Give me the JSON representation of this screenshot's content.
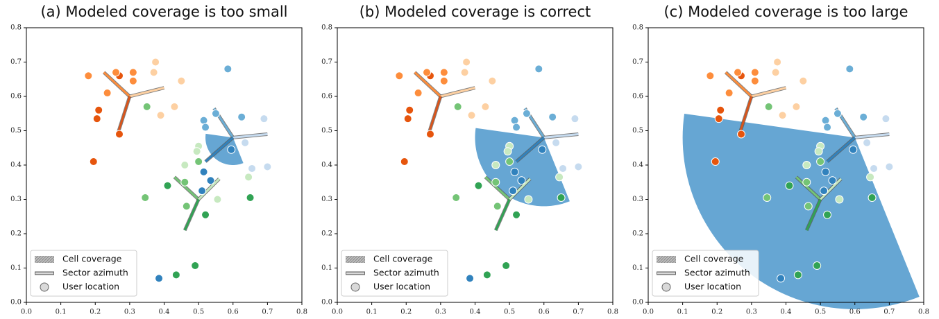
{
  "chart_data": [
    {
      "type": "scatter",
      "title": "(a) Modeled coverage is too small",
      "xlim": [
        0,
        0.8
      ],
      "ylim": [
        0,
        0.8
      ],
      "xticks": [
        {
          "value": 0,
          "label": "0.0"
        },
        0.1,
        0.2,
        0.3,
        0.4,
        0.5,
        0.6,
        0.7,
        0.8
      ],
      "yticks": [
        {
          "value": 0,
          "label": "0.0"
        },
        0.1,
        0.2,
        0.3,
        0.4,
        0.5,
        0.6,
        0.7,
        0.8
      ],
      "coverage": {
        "x": 0.6,
        "y": 0.48,
        "radius": 0.08,
        "angles": [
          172,
          292
        ],
        "color": "#66a6d3"
      },
      "sites": [
        {
          "x": 0.3,
          "y": 0.6,
          "arms": [
            {
              "x": 0.225,
              "y": 0.67,
              "color": "#fd8d3c"
            },
            {
              "x": 0.4,
              "y": 0.625,
              "color": "#fdd0a2"
            },
            {
              "x": 0.265,
              "y": 0.49,
              "color": "#d9541a"
            }
          ]
        },
        {
          "x": 0.6,
          "y": 0.48,
          "arms": [
            {
              "x": 0.545,
              "y": 0.565,
              "color": "#6baed6"
            },
            {
              "x": 0.7,
              "y": 0.49,
              "color": "#c6dbef"
            },
            {
              "x": 0.52,
              "y": 0.41,
              "color": "#3182bd"
            }
          ]
        },
        {
          "x": 0.5,
          "y": 0.3,
          "arms": [
            {
              "x": 0.43,
              "y": 0.365,
              "color": "#74c476"
            },
            {
              "x": 0.56,
              "y": 0.36,
              "color": "#c7e9c0"
            },
            {
              "x": 0.46,
              "y": 0.21,
              "color": "#31a354"
            }
          ]
        }
      ],
      "series": [
        {
          "color": "#e6550d",
          "x": [
            0.27,
            0.21,
            0.205,
            0.27,
            0.195
          ],
          "y": [
            0.66,
            0.56,
            0.535,
            0.49,
            0.41
          ]
        },
        {
          "color": "#fd8d3c",
          "x": [
            0.18,
            0.26,
            0.31,
            0.31,
            0.235
          ],
          "y": [
            0.66,
            0.67,
            0.67,
            0.645,
            0.61
          ]
        },
        {
          "color": "#fdd0a2",
          "x": [
            0.375,
            0.37,
            0.39,
            0.45,
            0.43
          ],
          "y": [
            0.7,
            0.67,
            0.545,
            0.645,
            0.57
          ]
        },
        {
          "color": "#3182bd",
          "x": [
            0.595,
            0.515,
            0.535,
            0.51,
            0.385
          ],
          "y": [
            0.445,
            0.38,
            0.355,
            0.325,
            0.07
          ]
        },
        {
          "color": "#6baed6",
          "x": [
            0.585,
            0.515,
            0.52,
            0.55,
            0.625
          ],
          "y": [
            0.68,
            0.53,
            0.51,
            0.55,
            0.54
          ]
        },
        {
          "color": "#c6dbef",
          "x": [
            0.69,
            0.7,
            0.655,
            0.635
          ],
          "y": [
            0.535,
            0.395,
            0.39,
            0.465
          ]
        },
        {
          "color": "#31a354",
          "x": [
            0.41,
            0.49,
            0.435,
            0.52,
            0.65
          ],
          "y": [
            0.34,
            0.107,
            0.08,
            0.255,
            0.305
          ]
        },
        {
          "color": "#74c476",
          "x": [
            0.35,
            0.5,
            0.345,
            0.465,
            0.46
          ],
          "y": [
            0.57,
            0.41,
            0.305,
            0.28,
            0.35
          ]
        },
        {
          "color": "#c7e9c0",
          "x": [
            0.46,
            0.5,
            0.495,
            0.555,
            0.645
          ],
          "y": [
            0.4,
            0.455,
            0.44,
            0.3,
            0.365
          ]
        }
      ],
      "legend": [
        "Cell coverage",
        "Sector azimuth",
        "User location"
      ]
    },
    {
      "type": "scatter",
      "title": "(b) Modeled coverage is correct",
      "xlim": [
        0,
        0.8
      ],
      "ylim": [
        0,
        0.8
      ],
      "xticks": [
        {
          "value": 0,
          "label": "0.0"
        },
        0.1,
        0.2,
        0.3,
        0.4,
        0.5,
        0.6,
        0.7,
        0.8
      ],
      "yticks": [
        {
          "value": 0,
          "label": "0.0"
        },
        0.1,
        0.2,
        0.3,
        0.4,
        0.5,
        0.6,
        0.7,
        0.8
      ],
      "coverage": {
        "x": 0.6,
        "y": 0.48,
        "radius": 0.2,
        "angles": [
          172,
          292
        ],
        "color": "#66a6d3"
      },
      "sites": [
        {
          "x": 0.3,
          "y": 0.6,
          "arms": [
            {
              "x": 0.225,
              "y": 0.67,
              "color": "#fd8d3c"
            },
            {
              "x": 0.4,
              "y": 0.625,
              "color": "#fdd0a2"
            },
            {
              "x": 0.265,
              "y": 0.49,
              "color": "#d9541a"
            }
          ]
        },
        {
          "x": 0.6,
          "y": 0.48,
          "arms": [
            {
              "x": 0.545,
              "y": 0.565,
              "color": "#6baed6"
            },
            {
              "x": 0.7,
              "y": 0.49,
              "color": "#c6dbef"
            },
            {
              "x": 0.52,
              "y": 0.41,
              "color": "#3182bd"
            }
          ]
        },
        {
          "x": 0.5,
          "y": 0.3,
          "arms": [
            {
              "x": 0.43,
              "y": 0.365,
              "color": "#74c476"
            },
            {
              "x": 0.56,
              "y": 0.36,
              "color": "#c7e9c0"
            },
            {
              "x": 0.46,
              "y": 0.21,
              "color": "#31a354"
            }
          ]
        }
      ],
      "series": [
        {
          "color": "#e6550d",
          "x": [
            0.27,
            0.21,
            0.205,
            0.27,
            0.195
          ],
          "y": [
            0.66,
            0.56,
            0.535,
            0.49,
            0.41
          ]
        },
        {
          "color": "#fd8d3c",
          "x": [
            0.18,
            0.26,
            0.31,
            0.31,
            0.235
          ],
          "y": [
            0.66,
            0.67,
            0.67,
            0.645,
            0.61
          ]
        },
        {
          "color": "#fdd0a2",
          "x": [
            0.375,
            0.37,
            0.39,
            0.45,
            0.43
          ],
          "y": [
            0.7,
            0.67,
            0.545,
            0.645,
            0.57
          ]
        },
        {
          "color": "#3182bd",
          "x": [
            0.595,
            0.515,
            0.535,
            0.51,
            0.385
          ],
          "y": [
            0.445,
            0.38,
            0.355,
            0.325,
            0.07
          ]
        },
        {
          "color": "#6baed6",
          "x": [
            0.585,
            0.515,
            0.52,
            0.55,
            0.625
          ],
          "y": [
            0.68,
            0.53,
            0.51,
            0.55,
            0.54
          ]
        },
        {
          "color": "#c6dbef",
          "x": [
            0.69,
            0.7,
            0.655,
            0.635
          ],
          "y": [
            0.535,
            0.395,
            0.39,
            0.465
          ]
        },
        {
          "color": "#31a354",
          "x": [
            0.41,
            0.49,
            0.435,
            0.52,
            0.65
          ],
          "y": [
            0.34,
            0.107,
            0.08,
            0.255,
            0.305
          ]
        },
        {
          "color": "#74c476",
          "x": [
            0.35,
            0.5,
            0.345,
            0.465,
            0.46
          ],
          "y": [
            0.57,
            0.41,
            0.305,
            0.28,
            0.35
          ]
        },
        {
          "color": "#c7e9c0",
          "x": [
            0.46,
            0.5,
            0.495,
            0.555,
            0.645
          ],
          "y": [
            0.4,
            0.455,
            0.44,
            0.3,
            0.365
          ]
        }
      ],
      "legend": [
        "Cell coverage",
        "Sector azimuth",
        "User location"
      ]
    },
    {
      "type": "scatter",
      "title": "(c) Modeled coverage is too large",
      "xlim": [
        0,
        0.8
      ],
      "ylim": [
        0,
        0.8
      ],
      "xticks": [
        {
          "value": 0,
          "label": "0.0"
        },
        0.1,
        0.2,
        0.3,
        0.4,
        0.5,
        0.6,
        0.7,
        0.8
      ],
      "yticks": [
        {
          "value": 0,
          "label": "0.0"
        },
        0.1,
        0.2,
        0.3,
        0.4,
        0.5,
        0.6,
        0.7,
        0.8
      ],
      "coverage": {
        "x": 0.6,
        "y": 0.48,
        "radius": 0.5,
        "angles": [
          172,
          292
        ],
        "color": "#66a6d3"
      },
      "sites": [
        {
          "x": 0.3,
          "y": 0.6,
          "arms": [
            {
              "x": 0.225,
              "y": 0.67,
              "color": "#fd8d3c"
            },
            {
              "x": 0.4,
              "y": 0.625,
              "color": "#fdd0a2"
            },
            {
              "x": 0.265,
              "y": 0.49,
              "color": "#d9541a"
            }
          ]
        },
        {
          "x": 0.6,
          "y": 0.48,
          "arms": [
            {
              "x": 0.545,
              "y": 0.565,
              "color": "#6baed6"
            },
            {
              "x": 0.7,
              "y": 0.49,
              "color": "#c6dbef"
            },
            {
              "x": 0.52,
              "y": 0.41,
              "color": "#3182bd"
            }
          ]
        },
        {
          "x": 0.5,
          "y": 0.3,
          "arms": [
            {
              "x": 0.43,
              "y": 0.365,
              "color": "#74c476"
            },
            {
              "x": 0.56,
              "y": 0.36,
              "color": "#c7e9c0"
            },
            {
              "x": 0.46,
              "y": 0.21,
              "color": "#31a354"
            }
          ]
        }
      ],
      "series": [
        {
          "color": "#e6550d",
          "x": [
            0.27,
            0.21,
            0.205,
            0.27,
            0.195
          ],
          "y": [
            0.66,
            0.56,
            0.535,
            0.49,
            0.41
          ]
        },
        {
          "color": "#fd8d3c",
          "x": [
            0.18,
            0.26,
            0.31,
            0.31,
            0.235
          ],
          "y": [
            0.66,
            0.67,
            0.67,
            0.645,
            0.61
          ]
        },
        {
          "color": "#fdd0a2",
          "x": [
            0.375,
            0.37,
            0.39,
            0.45,
            0.43
          ],
          "y": [
            0.7,
            0.67,
            0.545,
            0.645,
            0.57
          ]
        },
        {
          "color": "#3182bd",
          "x": [
            0.595,
            0.515,
            0.535,
            0.51,
            0.385
          ],
          "y": [
            0.445,
            0.38,
            0.355,
            0.325,
            0.07
          ]
        },
        {
          "color": "#6baed6",
          "x": [
            0.585,
            0.515,
            0.52,
            0.55,
            0.625
          ],
          "y": [
            0.68,
            0.53,
            0.51,
            0.55,
            0.54
          ]
        },
        {
          "color": "#c6dbef",
          "x": [
            0.69,
            0.7,
            0.655,
            0.635
          ],
          "y": [
            0.535,
            0.395,
            0.39,
            0.465
          ]
        },
        {
          "color": "#31a354",
          "x": [
            0.41,
            0.49,
            0.435,
            0.52,
            0.65
          ],
          "y": [
            0.34,
            0.107,
            0.08,
            0.255,
            0.305
          ]
        },
        {
          "color": "#74c476",
          "x": [
            0.35,
            0.5,
            0.345,
            0.465,
            0.46
          ],
          "y": [
            0.57,
            0.41,
            0.305,
            0.28,
            0.35
          ]
        },
        {
          "color": "#c7e9c0",
          "x": [
            0.46,
            0.5,
            0.495,
            0.555,
            0.645
          ],
          "y": [
            0.4,
            0.455,
            0.44,
            0.3,
            0.365
          ]
        }
      ],
      "legend": [
        "Cell coverage",
        "Sector azimuth",
        "User location"
      ]
    }
  ]
}
